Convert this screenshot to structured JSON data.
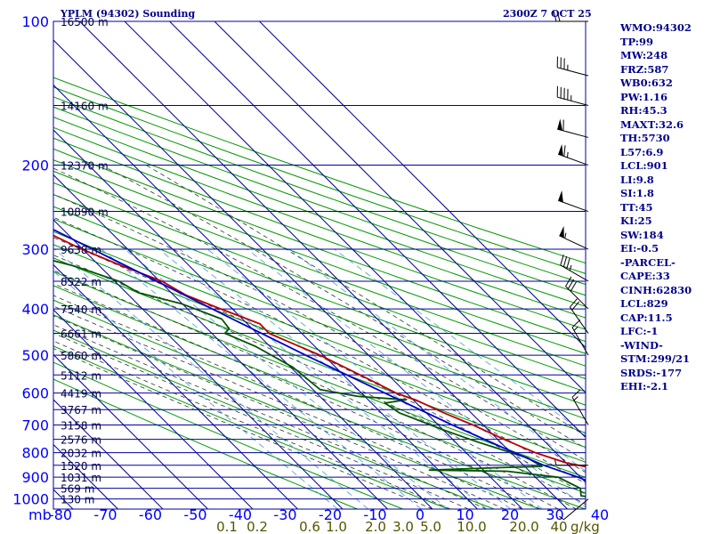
{
  "header": {
    "title": "YPLM (94302) Sounding",
    "valid": "2300Z  7 OCT 25"
  },
  "params": [
    "WMO:94302",
    "TP:99",
    "MW:248",
    "FRZ:587",
    "WB0:632",
    "PW:1.16",
    "RH:45.3",
    "MAXT:32.6",
    "TH:5730",
    "L57:6.9",
    "LCL:901",
    "LI:9.8",
    "SI:1.8",
    "TT:45",
    "KI:25",
    "SW:184",
    "EI:-0.5",
    "-PARCEL-",
    "CAPE:33",
    "CINH:62830",
    "LCL:829",
    "CAP:11.5",
    "LFC:-1",
    "-WIND-",
    "STM:299/21",
    "SRDS:-177",
    "EHI:-2.1"
  ],
  "chart_data": {
    "type": "skew-t",
    "xlabel_unit": "mb",
    "mixing_ratio_unit": "g/kg",
    "pressure_ticks": [
      100,
      200,
      300,
      400,
      500,
      600,
      700,
      800,
      900,
      1000
    ],
    "temperature_ticks": [
      -80,
      -70,
      -60,
      -50,
      -40,
      -30,
      -20,
      -10,
      0,
      10,
      20,
      30,
      40
    ],
    "mixing_ratio_labels": [
      "0.1",
      "0.2",
      "0.6",
      "1.0",
      "2.0",
      "3.0",
      "5.0",
      "10.0",
      "20.0",
      "40"
    ],
    "height_labels": [
      {
        "p": 100,
        "label": "16500 m"
      },
      {
        "p": 150,
        "label": "14160 m"
      },
      {
        "p": 200,
        "label": "12370 m"
      },
      {
        "p": 250,
        "label": "10890 m"
      },
      {
        "p": 300,
        "label": "9638 m"
      },
      {
        "p": 350,
        "label": "8522 m"
      },
      {
        "p": 400,
        "label": "7540 m"
      },
      {
        "p": 450,
        "label": "6661 m"
      },
      {
        "p": 500,
        "label": "5860 m"
      },
      {
        "p": 550,
        "label": "5112 m"
      },
      {
        "p": 600,
        "label": "4419 m"
      },
      {
        "p": 650,
        "label": "3767 m"
      },
      {
        "p": 700,
        "label": "3158 m"
      },
      {
        "p": 750,
        "label": "2576 m"
      },
      {
        "p": 800,
        "label": "2032 m"
      },
      {
        "p": 850,
        "label": "1520 m"
      },
      {
        "p": 900,
        "label": "1031 m"
      },
      {
        "p": 950,
        "label": "569 m"
      },
      {
        "p": 1000,
        "label": "130 m"
      }
    ],
    "series": [
      {
        "points": [
          [
            1005,
            26.8
          ],
          [
            990,
            25.7
          ],
          [
            980,
            24.5
          ],
          [
            975,
            25.9
          ],
          [
            965,
            26.2
          ],
          [
            950,
            25.0
          ],
          [
            935,
            24.5
          ],
          [
            900,
            23.0
          ],
          [
            875,
            24.4
          ],
          [
            860,
            24.5
          ],
          [
            840,
            20.0
          ],
          [
            800,
            15.4
          ],
          [
            780,
            13.8
          ],
          [
            750,
            11.4
          ],
          [
            700,
            7.7
          ],
          [
            660,
            3.9
          ],
          [
            620,
            0.5
          ],
          [
            600,
            -2.3
          ],
          [
            560,
            -5.4
          ],
          [
            500,
            -10.8
          ],
          [
            475,
            -14.0
          ],
          [
            450,
            -17.3
          ],
          [
            430,
            -17.2
          ],
          [
            400,
            -22.6
          ],
          [
            375,
            -27.2
          ],
          [
            350,
            -29.5
          ],
          [
            325,
            -35.0
          ],
          [
            300,
            -40.2
          ],
          [
            250,
            -49.3
          ],
          [
            200,
            -57.5
          ],
          [
            150,
            -68.5
          ],
          [
            125,
            -74.0
          ],
          [
            110,
            -78.5
          ],
          [
            100,
            -82.0
          ]
        ]
      },
      {
        "points": [
          [
            1005,
            22.0
          ],
          [
            985,
            16.0
          ],
          [
            950,
            17.5
          ],
          [
            900,
            15.0
          ],
          [
            875,
            5.0
          ],
          [
            870,
            -12.0
          ],
          [
            860,
            3.5
          ],
          [
            855,
            13.8
          ],
          [
            820,
            12.5
          ],
          [
            760,
            5.0
          ],
          [
            720,
            0.4
          ],
          [
            700,
            -1.7
          ],
          [
            660,
            -6.0
          ],
          [
            630,
            -7.0
          ],
          [
            620,
            -1.6
          ],
          [
            610,
            -11.5
          ],
          [
            590,
            -18.4
          ],
          [
            530,
            -19.5
          ],
          [
            480,
            -23.1
          ],
          [
            450,
            -27.1
          ],
          [
            440,
            -25.1
          ],
          [
            420,
            -24.6
          ],
          [
            390,
            -30.2
          ],
          [
            370,
            -37.3
          ],
          [
            350,
            -39.1
          ],
          [
            325,
            -45.7
          ],
          [
            305,
            -54.5
          ],
          [
            250,
            -58.5
          ],
          [
            200,
            -65.5
          ],
          [
            180,
            -75.0
          ],
          [
            140,
            -87.0
          ]
        ]
      },
      {
        "points": [
          [
            1005,
            26.8
          ],
          [
            900,
            19.5
          ],
          [
            850,
            14.5
          ],
          [
            800,
            10.7
          ],
          [
            700,
            3.1
          ],
          [
            600,
            -4.8
          ],
          [
            500,
            -14.0
          ],
          [
            400,
            -24.5
          ],
          [
            300,
            -37.8
          ],
          [
            250,
            -46.3
          ],
          [
            200,
            -56.3
          ],
          [
            180,
            -61.0
          ]
        ]
      }
    ],
    "winds": [
      {
        "p": 100,
        "dir": 270,
        "spd": 20
      },
      {
        "p": 130,
        "dir": 285,
        "spd": 35
      },
      {
        "p": 150,
        "dir": 285,
        "spd": 45
      },
      {
        "p": 175,
        "dir": 285,
        "spd": 60
      },
      {
        "p": 200,
        "dir": 290,
        "spd": 65
      },
      {
        "p": 250,
        "dir": 290,
        "spd": 50
      },
      {
        "p": 300,
        "dir": 295,
        "spd": 55
      },
      {
        "p": 350,
        "dir": 300,
        "spd": 35
      },
      {
        "p": 400,
        "dir": 315,
        "spd": 30
      },
      {
        "p": 450,
        "dir": 325,
        "spd": 20
      },
      {
        "p": 500,
        "dir": 330,
        "spd": 15
      },
      {
        "p": 700,
        "dir": 330,
        "spd": 15
      },
      {
        "p": 850,
        "dir": 270,
        "spd": 5
      },
      {
        "p": 1000,
        "dir": 230,
        "spd": 5
      }
    ],
    "colors": {
      "isobar": "#0000a0",
      "isotherm": "#0000a0",
      "dry_adiabat": "#009900",
      "moist_adiabat": "#333333",
      "mixing_ratio": "#4499dd",
      "temperature": "#bb0000",
      "dewpoint": "#005500",
      "parcel": "#0000cc",
      "mixing_label": "#555500",
      "text": "#00008b"
    }
  }
}
